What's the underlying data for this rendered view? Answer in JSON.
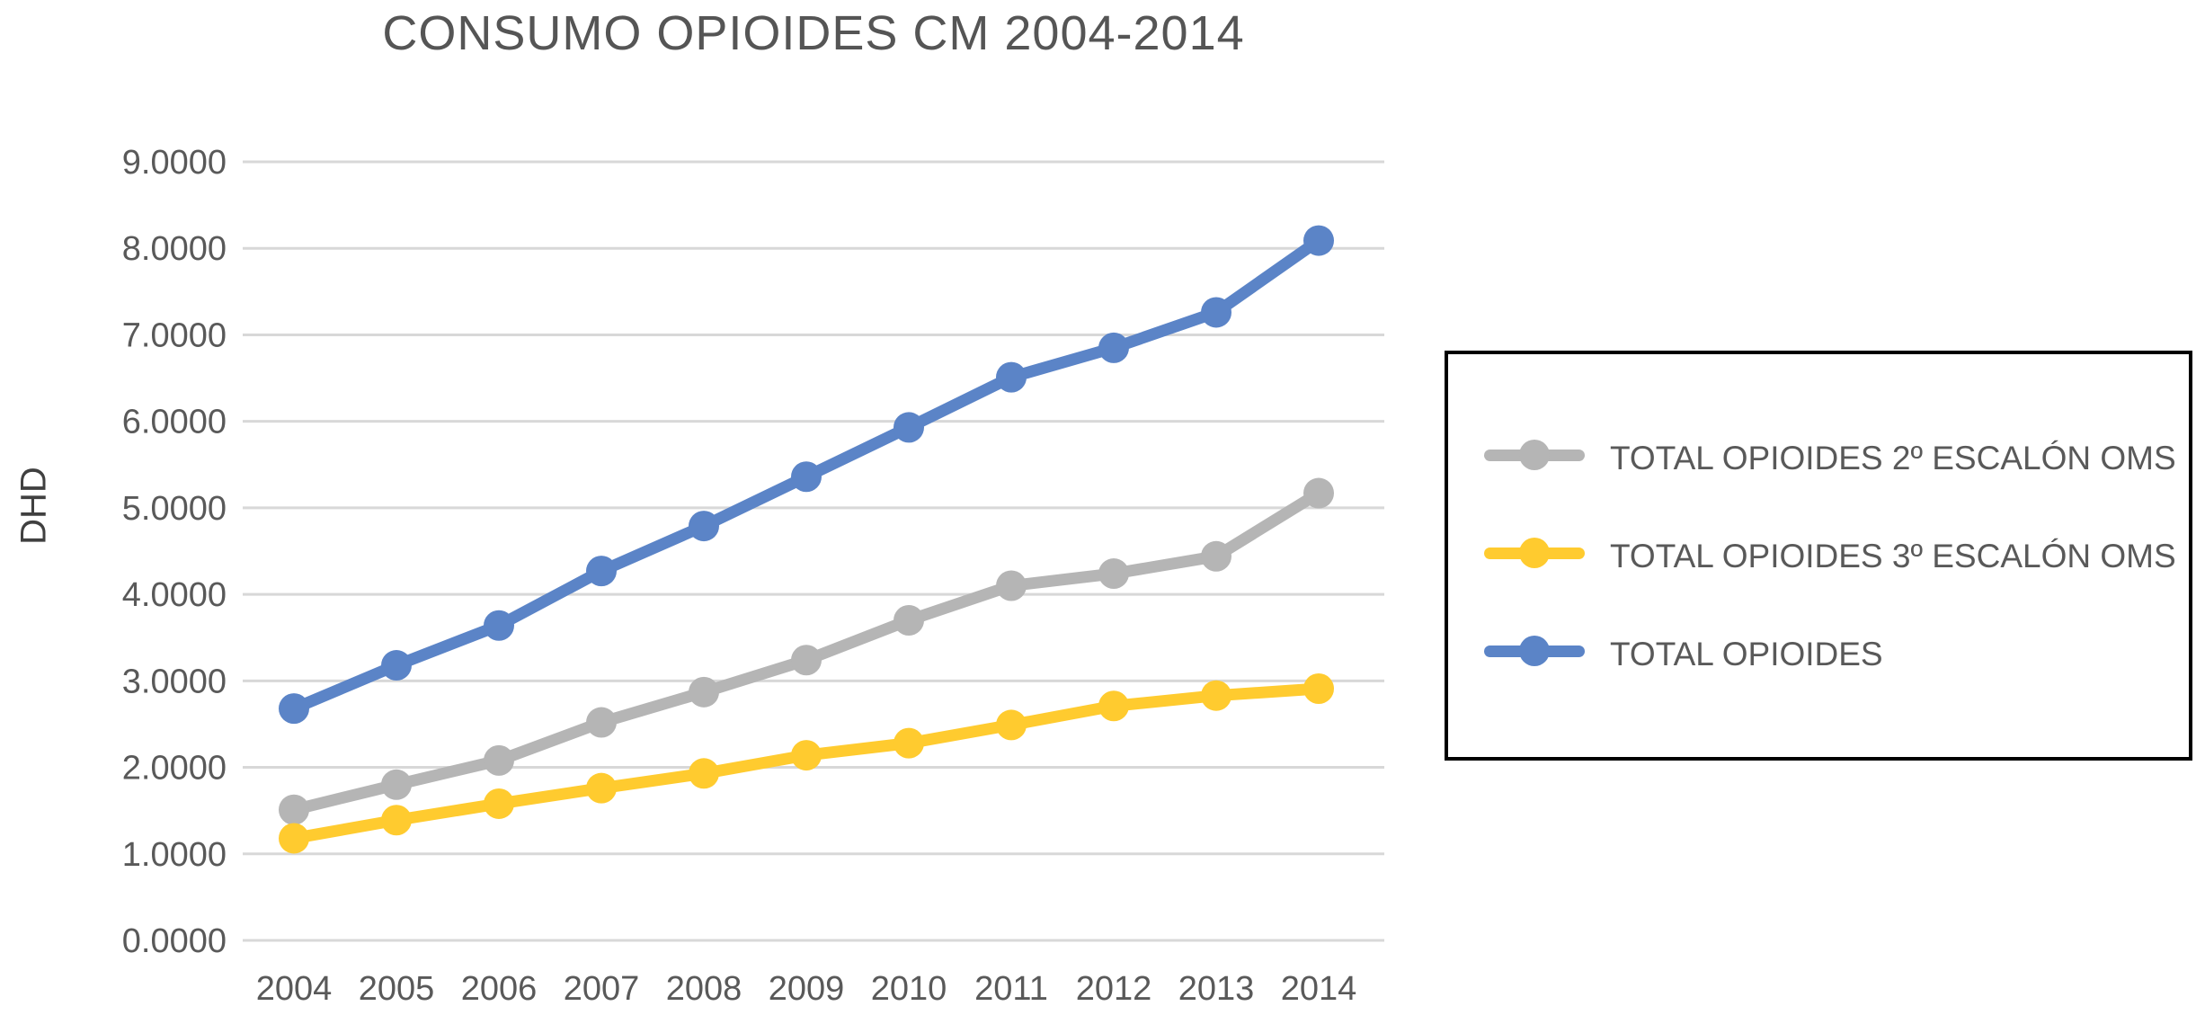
{
  "chart_data": {
    "type": "line",
    "title": "CONSUMO OPIOIDES CM 2004-2014",
    "ylabel": "DHD",
    "xlabel": "",
    "categories": [
      "2004",
      "2005",
      "2006",
      "2007",
      "2008",
      "2009",
      "2010",
      "2011",
      "2012",
      "2013",
      "2014"
    ],
    "series": [
      {
        "name": "TOTAL OPIOIDES 2º ESCALÓN OMS",
        "color": "#b5b5b5",
        "values": [
          1.51,
          1.8,
          2.08,
          2.52,
          2.87,
          3.24,
          3.7,
          4.1,
          4.24,
          4.44,
          5.17
        ]
      },
      {
        "name": "TOTAL OPIOIDES 3º ESCALÓN OMS",
        "color": "#ffcb2f",
        "values": [
          1.18,
          1.39,
          1.58,
          1.76,
          1.93,
          2.14,
          2.28,
          2.49,
          2.71,
          2.83,
          2.91
        ]
      },
      {
        "name": "TOTAL OPIOIDES",
        "color": "#5b84c7",
        "values": [
          2.68,
          3.18,
          3.64,
          4.27,
          4.79,
          5.36,
          5.93,
          6.51,
          6.85,
          7.26,
          8.09
        ]
      }
    ],
    "y_ticks": [
      "0.0000",
      "1.0000",
      "2.0000",
      "3.0000",
      "4.0000",
      "5.0000",
      "6.0000",
      "7.0000",
      "8.0000",
      "9.0000"
    ],
    "ylim": [
      0,
      9
    ],
    "grid": "horizontal-only",
    "legend_position": "right",
    "colors": {
      "gridline": "#d8d8d8",
      "tick_text": "#595959",
      "title_text": "#555555",
      "legend_border": "#000000",
      "background": "#ffffff"
    }
  }
}
